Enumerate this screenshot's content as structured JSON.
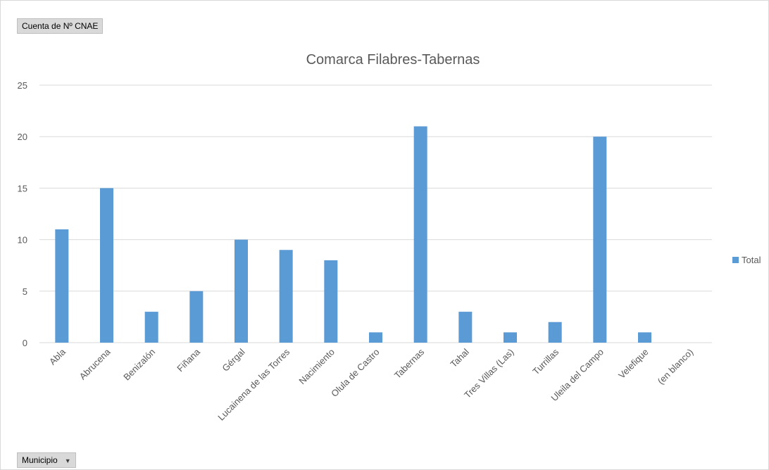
{
  "field_buttons": {
    "value_field": "Cuenta de  Nº CNAE",
    "axis_field": "Municipio"
  },
  "chart_data": {
    "type": "bar",
    "title": "Comarca Filabres-Tabernas",
    "xlabel": "",
    "ylabel": "",
    "categories": [
      "Abla",
      "Abrucena",
      "Benizalón",
      "Fiñana",
      "Gérgal",
      "Lucainena de las Torres",
      "Nacimiento",
      "Olula de Castro",
      "Tabernas",
      "Tahal",
      "Tres Villas (Las)",
      "Turrillas",
      "Uleila del Campo",
      "Velefique",
      "(en blanco)"
    ],
    "series": [
      {
        "name": "Total",
        "color": "#5b9bd5",
        "values": [
          11,
          15,
          3,
          5,
          10,
          9,
          8,
          1,
          21,
          3,
          1,
          2,
          20,
          1,
          null
        ]
      }
    ],
    "ylim": [
      0,
      25
    ],
    "yticks": [
      0,
      5,
      10,
      15,
      20,
      25
    ],
    "grid": true,
    "legend_position": "right"
  }
}
